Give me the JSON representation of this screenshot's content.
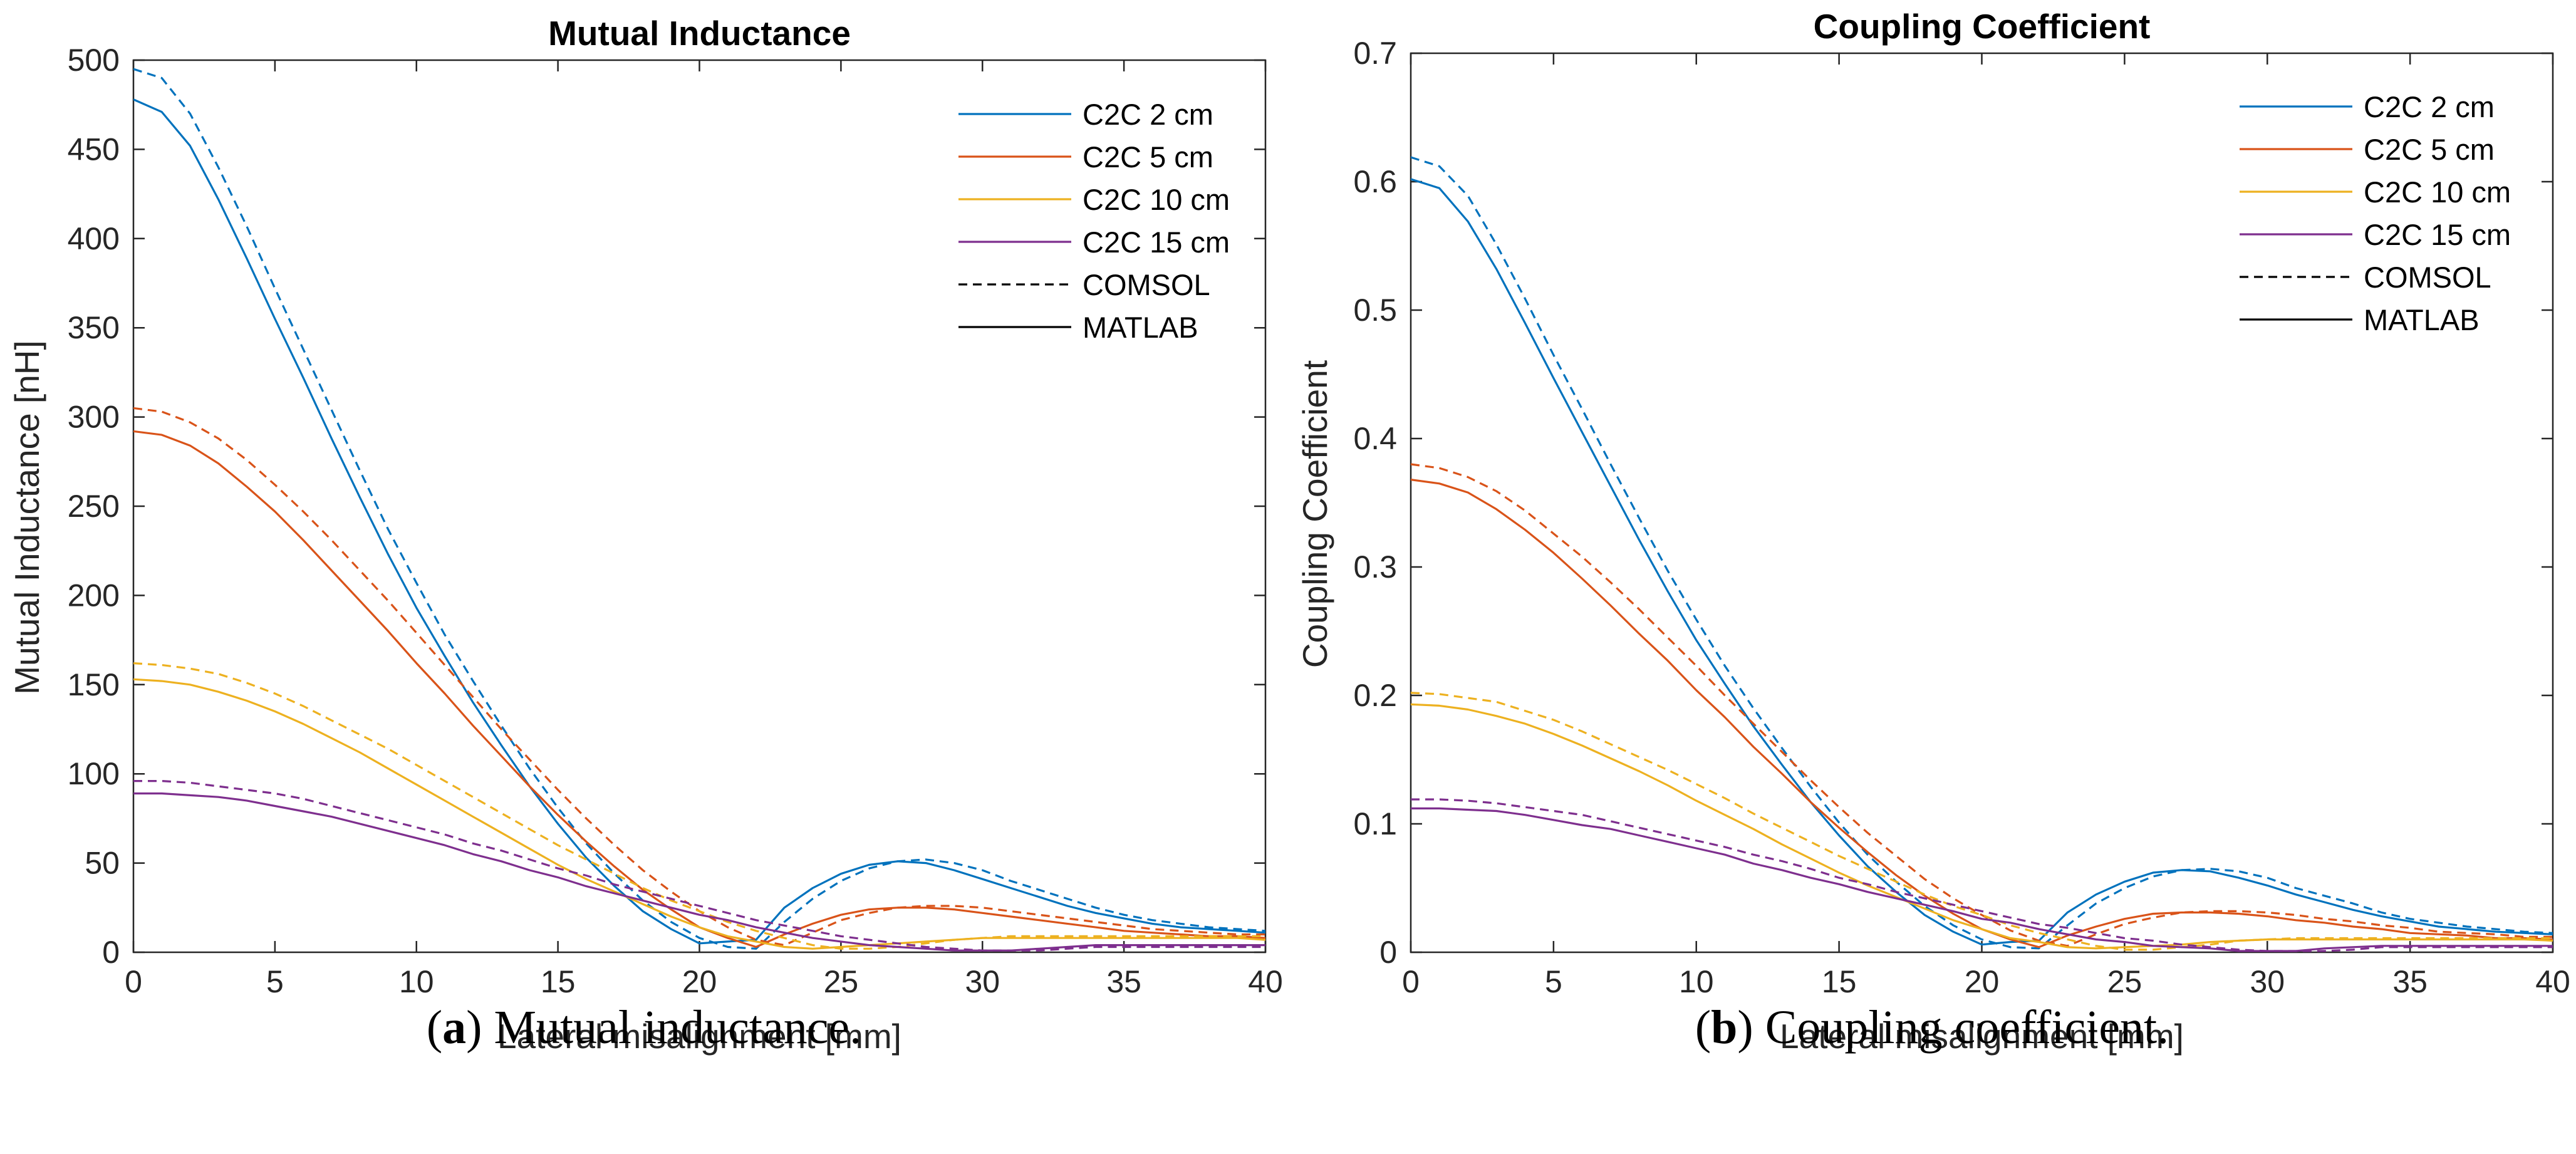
{
  "captions": [
    {
      "letter": "a",
      "text": "Mutual inductance."
    },
    {
      "letter": "b",
      "text": "Coupling coefficient."
    }
  ],
  "styles": {
    "line_styles": {
      "COMSOL": "dashed",
      "MATLAB": "solid"
    },
    "colors": {
      "C2C 2 cm": "#0072BD",
      "C2C 5 cm": "#D95319",
      "C2C 10 cm": "#EDB120",
      "C2C 15 cm": "#7E2F8E",
      "legend_key": "#000000"
    }
  },
  "chart_data": [
    {
      "type": "line",
      "title": "Mutual Inductance",
      "xlabel": "Lateral misalignment [mm]",
      "ylabel": "Mutual Inductance [nH]",
      "xlim": [
        0,
        40
      ],
      "ylim": [
        0,
        500
      ],
      "xticks": [
        0,
        5,
        10,
        15,
        20,
        25,
        30,
        35,
        40
      ],
      "yticks": [
        0,
        50,
        100,
        150,
        200,
        250,
        300,
        350,
        400,
        450,
        500
      ],
      "grid": false,
      "legend_position": "top-right",
      "legend": [
        "C2C 2 cm",
        "C2C 5 cm",
        "C2C 10 cm",
        "C2C 15 cm",
        "COMSOL",
        "MATLAB"
      ],
      "x": [
        0,
        1,
        2,
        3,
        4,
        5,
        6,
        7,
        8,
        9,
        10,
        11,
        12,
        13,
        14,
        15,
        16,
        17,
        18,
        19,
        20,
        21,
        22,
        23,
        24,
        25,
        26,
        27,
        28,
        29,
        30,
        31,
        32,
        33,
        34,
        35,
        36,
        37,
        38,
        39,
        40
      ],
      "series": [
        {
          "name": "C2C 2 cm",
          "method": "MATLAB",
          "values": [
            478,
            471,
            452,
            422,
            389,
            355,
            322,
            288,
            255,
            223,
            193,
            166,
            140,
            116,
            93,
            72,
            53,
            37,
            23,
            13,
            5,
            6,
            7,
            25,
            36,
            44,
            49,
            51,
            50,
            46,
            41,
            36,
            31,
            26,
            22,
            19,
            16,
            14,
            13,
            12,
            11
          ]
        },
        {
          "name": "C2C 2 cm",
          "method": "COMSOL",
          "values": [
            495,
            490,
            470,
            440,
            407,
            372,
            338,
            304,
            270,
            237,
            207,
            178,
            152,
            127,
            103,
            81,
            61,
            44,
            29,
            17,
            8,
            3,
            2,
            17,
            30,
            40,
            47,
            51,
            52,
            50,
            46,
            40,
            35,
            30,
            25,
            21,
            18,
            16,
            14,
            13,
            12
          ]
        },
        {
          "name": "C2C 5 cm",
          "method": "MATLAB",
          "values": [
            292,
            290,
            284,
            274,
            261,
            247,
            231,
            214,
            197,
            180,
            162,
            145,
            127,
            110,
            93,
            77,
            62,
            48,
            35,
            24,
            14,
            8,
            3,
            10,
            16,
            21,
            24,
            25,
            25,
            24,
            22,
            20,
            18,
            16,
            14,
            12,
            11,
            10,
            9,
            9,
            8
          ]
        },
        {
          "name": "C2C 5 cm",
          "method": "COMSOL",
          "values": [
            305,
            303,
            297,
            288,
            276,
            262,
            247,
            231,
            214,
            197,
            179,
            161,
            143,
            125,
            108,
            91,
            75,
            60,
            46,
            34,
            23,
            14,
            7,
            4,
            11,
            18,
            22,
            25,
            26,
            26,
            25,
            23,
            21,
            19,
            17,
            15,
            13,
            12,
            11,
            10,
            10
          ]
        },
        {
          "name": "C2C 10 cm",
          "method": "MATLAB",
          "values": [
            153,
            152,
            150,
            146,
            141,
            135,
            128,
            120,
            112,
            103,
            94,
            85,
            76,
            67,
            58,
            49,
            41,
            34,
            27,
            20,
            14,
            9,
            6,
            3,
            2,
            3,
            4,
            5,
            6,
            7,
            8,
            8,
            8,
            8,
            8,
            8,
            8,
            8,
            8,
            8,
            7
          ]
        },
        {
          "name": "C2C 10 cm",
          "method": "COMSOL",
          "values": [
            162,
            161,
            159,
            156,
            151,
            145,
            138,
            130,
            122,
            114,
            105,
            96,
            87,
            78,
            69,
            60,
            52,
            44,
            36,
            29,
            23,
            17,
            12,
            8,
            4,
            2,
            2,
            3,
            5,
            7,
            8,
            9,
            9,
            9,
            9,
            9,
            9,
            9,
            9,
            9,
            9
          ]
        },
        {
          "name": "C2C 15 cm",
          "method": "MATLAB",
          "values": [
            89,
            89,
            88,
            87,
            85,
            82,
            79,
            76,
            72,
            68,
            64,
            60,
            55,
            51,
            46,
            42,
            37,
            33,
            29,
            25,
            21,
            18,
            14,
            11,
            8,
            6,
            4,
            3,
            2,
            1,
            1,
            1,
            2,
            3,
            4,
            4,
            4,
            4,
            4,
            4,
            4
          ]
        },
        {
          "name": "C2C 15 cm",
          "method": "COMSOL",
          "values": [
            96,
            96,
            95,
            93,
            91,
            89,
            86,
            82,
            78,
            74,
            70,
            66,
            61,
            57,
            52,
            47,
            43,
            38,
            34,
            30,
            26,
            22,
            18,
            15,
            12,
            9,
            7,
            5,
            3,
            2,
            1,
            1,
            1,
            2,
            3,
            3,
            3,
            3,
            3,
            3,
            3
          ]
        }
      ]
    },
    {
      "type": "line",
      "title": "Coupling Coefficient",
      "xlabel": "Lateral misalignment [mm]",
      "ylabel": "Coupling Coefficient",
      "xlim": [
        0,
        40
      ],
      "ylim": [
        0,
        0.7
      ],
      "xticks": [
        0,
        5,
        10,
        15,
        20,
        25,
        30,
        35,
        40
      ],
      "yticks": [
        0,
        0.1,
        0.2,
        0.3,
        0.4,
        0.5,
        0.6,
        0.7
      ],
      "grid": false,
      "legend_position": "top-right",
      "legend": [
        "C2C 2 cm",
        "C2C 5 cm",
        "C2C 10 cm",
        "C2C 15 cm",
        "COMSOL",
        "MATLAB"
      ],
      "x": [
        0,
        1,
        2,
        3,
        4,
        5,
        6,
        7,
        8,
        9,
        10,
        11,
        12,
        13,
        14,
        15,
        16,
        17,
        18,
        19,
        20,
        21,
        22,
        23,
        24,
        25,
        26,
        27,
        28,
        29,
        30,
        31,
        32,
        33,
        34,
        35,
        36,
        37,
        38,
        39,
        40
      ],
      "series": [
        {
          "name": "C2C 2 cm",
          "method": "MATLAB",
          "values": [
            0.602,
            0.595,
            0.569,
            0.532,
            0.49,
            0.447,
            0.405,
            0.363,
            0.321,
            0.281,
            0.243,
            0.209,
            0.176,
            0.146,
            0.117,
            0.091,
            0.067,
            0.047,
            0.029,
            0.016,
            0.006,
            0.008,
            0.009,
            0.031,
            0.045,
            0.055,
            0.062,
            0.064,
            0.063,
            0.058,
            0.052,
            0.045,
            0.039,
            0.033,
            0.028,
            0.024,
            0.02,
            0.018,
            0.016,
            0.015,
            0.014
          ]
        },
        {
          "name": "C2C 2 cm",
          "method": "COMSOL",
          "values": [
            0.619,
            0.612,
            0.589,
            0.551,
            0.509,
            0.465,
            0.423,
            0.38,
            0.338,
            0.297,
            0.259,
            0.223,
            0.19,
            0.159,
            0.129,
            0.101,
            0.076,
            0.055,
            0.036,
            0.021,
            0.01,
            0.004,
            0.003,
            0.021,
            0.038,
            0.05,
            0.059,
            0.064,
            0.065,
            0.063,
            0.058,
            0.05,
            0.044,
            0.038,
            0.031,
            0.026,
            0.023,
            0.02,
            0.018,
            0.016,
            0.015
          ]
        },
        {
          "name": "C2C 5 cm",
          "method": "MATLAB",
          "values": [
            0.368,
            0.365,
            0.358,
            0.345,
            0.329,
            0.311,
            0.291,
            0.27,
            0.248,
            0.227,
            0.204,
            0.183,
            0.16,
            0.139,
            0.117,
            0.097,
            0.078,
            0.06,
            0.044,
            0.03,
            0.018,
            0.01,
            0.004,
            0.013,
            0.02,
            0.026,
            0.03,
            0.031,
            0.031,
            0.03,
            0.028,
            0.025,
            0.023,
            0.02,
            0.018,
            0.015,
            0.014,
            0.013,
            0.011,
            0.011,
            0.01
          ]
        },
        {
          "name": "C2C 5 cm",
          "method": "COMSOL",
          "values": [
            0.38,
            0.377,
            0.37,
            0.359,
            0.344,
            0.326,
            0.308,
            0.288,
            0.267,
            0.245,
            0.223,
            0.2,
            0.178,
            0.156,
            0.134,
            0.113,
            0.093,
            0.075,
            0.057,
            0.042,
            0.029,
            0.017,
            0.009,
            0.005,
            0.014,
            0.022,
            0.027,
            0.031,
            0.032,
            0.032,
            0.031,
            0.029,
            0.026,
            0.024,
            0.021,
            0.019,
            0.016,
            0.015,
            0.014,
            0.012,
            0.012
          ]
        },
        {
          "name": "C2C 10 cm",
          "method": "MATLAB",
          "values": [
            0.193,
            0.192,
            0.189,
            0.184,
            0.178,
            0.17,
            0.161,
            0.151,
            0.141,
            0.13,
            0.118,
            0.107,
            0.096,
            0.084,
            0.073,
            0.062,
            0.052,
            0.043,
            0.034,
            0.025,
            0.018,
            0.011,
            0.008,
            0.004,
            0.003,
            0.004,
            0.005,
            0.006,
            0.008,
            0.009,
            0.01,
            0.01,
            0.01,
            0.01,
            0.01,
            0.01,
            0.01,
            0.01,
            0.01,
            0.01,
            0.009
          ]
        },
        {
          "name": "C2C 10 cm",
          "method": "COMSOL",
          "values": [
            0.202,
            0.201,
            0.198,
            0.195,
            0.188,
            0.181,
            0.172,
            0.162,
            0.152,
            0.142,
            0.131,
            0.12,
            0.108,
            0.097,
            0.086,
            0.075,
            0.065,
            0.055,
            0.045,
            0.036,
            0.029,
            0.021,
            0.015,
            0.01,
            0.005,
            0.002,
            0.002,
            0.004,
            0.006,
            0.009,
            0.01,
            0.011,
            0.011,
            0.011,
            0.011,
            0.011,
            0.011,
            0.011,
            0.011,
            0.011,
            0.011
          ]
        },
        {
          "name": "C2C 15 cm",
          "method": "MATLAB",
          "values": [
            0.112,
            0.112,
            0.111,
            0.11,
            0.107,
            0.103,
            0.099,
            0.096,
            0.091,
            0.086,
            0.081,
            0.076,
            0.069,
            0.064,
            0.058,
            0.053,
            0.047,
            0.042,
            0.037,
            0.032,
            0.026,
            0.023,
            0.018,
            0.014,
            0.01,
            0.008,
            0.005,
            0.004,
            0.003,
            0.001,
            0.001,
            0.001,
            0.003,
            0.004,
            0.005,
            0.005,
            0.005,
            0.005,
            0.005,
            0.005,
            0.005
          ]
        },
        {
          "name": "C2C 15 cm",
          "method": "COMSOL",
          "values": [
            0.119,
            0.119,
            0.118,
            0.116,
            0.113,
            0.11,
            0.107,
            0.102,
            0.097,
            0.092,
            0.087,
            0.082,
            0.076,
            0.071,
            0.065,
            0.058,
            0.053,
            0.047,
            0.042,
            0.037,
            0.032,
            0.027,
            0.022,
            0.019,
            0.015,
            0.011,
            0.009,
            0.006,
            0.004,
            0.002,
            0.001,
            0.001,
            0.001,
            0.002,
            0.004,
            0.004,
            0.004,
            0.004,
            0.004,
            0.004,
            0.004
          ]
        }
      ]
    }
  ]
}
